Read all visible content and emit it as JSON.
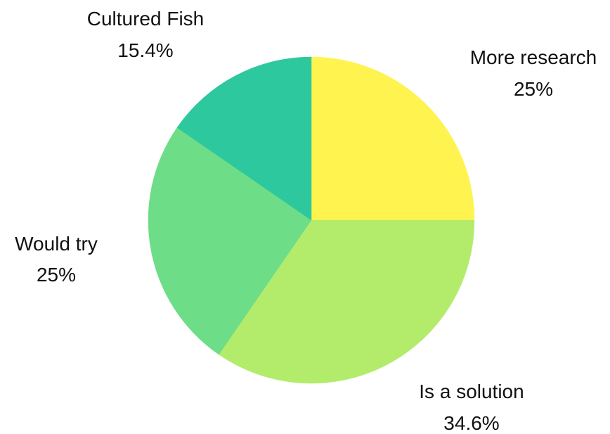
{
  "chart_data": {
    "type": "pie",
    "title": "",
    "slices": [
      {
        "label": "More research",
        "value": 25,
        "value_label": "25%",
        "color": "#fff44f"
      },
      {
        "label": "Is a solution",
        "value": 34.6,
        "value_label": "34.6%",
        "color": "#b3ec6b"
      },
      {
        "label": "Would try",
        "value": 25,
        "value_label": "25%",
        "color": "#6ddd88"
      },
      {
        "label": "Cultured Fish",
        "value": 15.4,
        "value_label": "15.4%",
        "color": "#2ec89e"
      }
    ],
    "start_angle_deg": 0,
    "direction": "clockwise",
    "legend": "none"
  }
}
